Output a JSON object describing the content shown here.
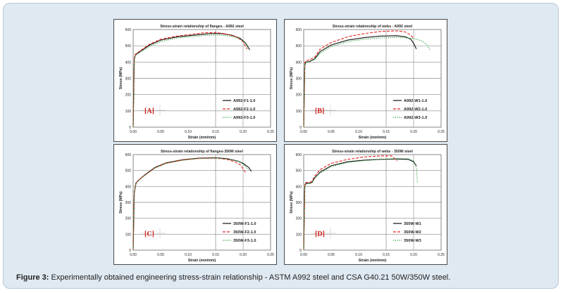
{
  "caption": {
    "label": "Figure 3:",
    "text": " Experimentally obtained engineering stress-strain relationship - ASTM A992 steel and CSA G40.21 50W/350W steel."
  },
  "chart_data": [
    {
      "type": "line",
      "panel_tag": "[A]",
      "title": "Stress-strain relationship of flanges - A992 steel",
      "xlabel": "Strain (mm/mm)",
      "ylabel": "Stress (MPa)",
      "xlim": [
        0,
        0.25
      ],
      "ylim": [
        0,
        600
      ],
      "xticks": [
        "0.00",
        "0.05",
        "0.10",
        "0.15",
        "0.20",
        "0.25"
      ],
      "yticks": [
        "0",
        "100",
        "200",
        "300",
        "400",
        "500",
        "600"
      ],
      "grid": true,
      "legend_position": "bottom-right",
      "series": [
        {
          "name": "A992-F1-1.0",
          "color": "#111111",
          "dash": "solid",
          "x": [
            0,
            0.002,
            0.004,
            0.008,
            0.015,
            0.03,
            0.05,
            0.08,
            0.11,
            0.14,
            0.16,
            0.18,
            0.195,
            0.205,
            0.212
          ],
          "y": [
            0,
            420,
            445,
            455,
            470,
            505,
            535,
            555,
            565,
            575,
            575,
            565,
            545,
            515,
            475
          ]
        },
        {
          "name": "A992-F2-1.0",
          "color": "#e8231f",
          "dash": "dashed",
          "x": [
            0,
            0.002,
            0.004,
            0.008,
            0.015,
            0.03,
            0.05,
            0.08,
            0.11,
            0.13,
            0.15,
            0.17,
            0.19,
            0.2,
            0.207
          ],
          "y": [
            0,
            425,
            448,
            458,
            475,
            510,
            540,
            560,
            572,
            580,
            582,
            572,
            552,
            525,
            480
          ]
        },
        {
          "name": "A992-F3-1.0",
          "color": "#2e9e3a",
          "dash": "dotted",
          "x": [
            0,
            0.002,
            0.004,
            0.008,
            0.015,
            0.03,
            0.05,
            0.08,
            0.11,
            0.14,
            0.16,
            0.18,
            0.195,
            0.205,
            0.21
          ],
          "y": [
            0,
            410,
            438,
            450,
            465,
            495,
            525,
            548,
            558,
            565,
            566,
            558,
            540,
            512,
            480
          ]
        }
      ]
    },
    {
      "type": "line",
      "panel_tag": "[B]",
      "title": "Stress-strain relationship of webs - A992 steel",
      "xlabel": "Strain (mm/mm)",
      "ylabel": "Stress (MPa)",
      "xlim": [
        0,
        0.25
      ],
      "ylim": [
        0,
        600
      ],
      "xticks": [
        "0.00",
        "0.05",
        "0.10",
        "0.15",
        "0.20",
        "0.25"
      ],
      "yticks": [
        "0",
        "100",
        "200",
        "300",
        "400",
        "500",
        "600"
      ],
      "grid": true,
      "legend_position": "bottom-right",
      "series": [
        {
          "name": "A992-W1-1.0",
          "color": "#111111",
          "dash": "solid",
          "x": [
            0,
            0.002,
            0.004,
            0.01,
            0.02,
            0.03,
            0.05,
            0.08,
            0.11,
            0.14,
            0.17,
            0.185,
            0.195,
            0.2,
            0.205
          ],
          "y": [
            0,
            380,
            400,
            402,
            420,
            465,
            505,
            535,
            550,
            560,
            562,
            555,
            540,
            515,
            480
          ]
        },
        {
          "name": "A992-W2-1.0",
          "color": "#e8231f",
          "dash": "dashed",
          "x": [
            0,
            0.002,
            0.004,
            0.01,
            0.02,
            0.03,
            0.05,
            0.08,
            0.11,
            0.14,
            0.17,
            0.185,
            0.195,
            0.2
          ],
          "y": [
            0,
            395,
            410,
            412,
            430,
            480,
            520,
            555,
            575,
            588,
            592,
            585,
            565,
            545
          ]
        },
        {
          "name": "A992-W3-1.0",
          "color": "#2e9e3a",
          "dash": "dotted",
          "x": [
            0,
            0.002,
            0.004,
            0.01,
            0.02,
            0.03,
            0.05,
            0.08,
            0.11,
            0.14,
            0.17,
            0.2,
            0.215,
            0.225,
            0.23
          ],
          "y": [
            0,
            385,
            400,
            405,
            415,
            455,
            495,
            525,
            540,
            548,
            552,
            545,
            530,
            505,
            470
          ]
        }
      ]
    },
    {
      "type": "line",
      "panel_tag": "[C]",
      "title": "Stress-strain relationship of flanges-350W steel",
      "xlabel": "Strain (mm/mm)",
      "ylabel": "Stress (MPa)",
      "xlim": [
        0,
        0.25
      ],
      "ylim": [
        0,
        600
      ],
      "xticks": [
        "0.00",
        "0.05",
        "0.10",
        "0.15",
        "0.20",
        "0.25"
      ],
      "yticks": [
        "0",
        "100",
        "200",
        "300",
        "400",
        "500",
        "600"
      ],
      "grid": true,
      "legend_position": "bottom-right",
      "series": [
        {
          "name": "350W-F1-1.0",
          "color": "#111111",
          "dash": "solid",
          "x": [
            0,
            0.002,
            0.005,
            0.01,
            0.02,
            0.04,
            0.06,
            0.09,
            0.12,
            0.15,
            0.17,
            0.19,
            0.2,
            0.21,
            0.215
          ],
          "y": [
            0,
            360,
            420,
            440,
            470,
            520,
            548,
            568,
            578,
            580,
            575,
            560,
            545,
            520,
            495
          ]
        },
        {
          "name": "350W-F2-1.0",
          "color": "#e8231f",
          "dash": "dashed",
          "x": [
            0,
            0.002,
            0.005,
            0.01,
            0.02,
            0.04,
            0.06,
            0.09,
            0.12,
            0.15,
            0.17,
            0.185,
            0.195,
            0.2,
            0.205
          ],
          "y": [
            0,
            360,
            420,
            440,
            468,
            518,
            546,
            566,
            576,
            578,
            570,
            555,
            535,
            510,
            485
          ]
        },
        {
          "name": "350W-F3-1.0",
          "color": "#2e9e3a",
          "dash": "dotted",
          "x": [
            0,
            0.002,
            0.005,
            0.01,
            0.02,
            0.04,
            0.06,
            0.09,
            0.12,
            0.15,
            0.17,
            0.19,
            0.2,
            0.21
          ],
          "y": [
            0,
            355,
            415,
            438,
            466,
            515,
            544,
            564,
            575,
            578,
            574,
            560,
            540,
            505
          ]
        }
      ]
    },
    {
      "type": "line",
      "panel_tag": "[D]",
      "title": "Stress-strain relationship of webs - 350W steel",
      "xlabel": "Strain (mm/mm)",
      "ylabel": "Stress (MPa)",
      "xlim": [
        0,
        0.25
      ],
      "ylim": [
        0,
        600
      ],
      "xticks": [
        "0.00",
        "0.05",
        "0.10",
        "0.15",
        "0.20",
        "0.25"
      ],
      "yticks": [
        "0",
        "100",
        "200",
        "300",
        "400",
        "500",
        "600"
      ],
      "grid": true,
      "legend_position": "bottom-right",
      "series": [
        {
          "name": "350W-W1",
          "color": "#111111",
          "dash": "solid",
          "x": [
            0,
            0.002,
            0.004,
            0.01,
            0.015,
            0.02,
            0.03,
            0.05,
            0.08,
            0.11,
            0.14,
            0.17,
            0.19,
            0.2,
            0.205
          ],
          "y": [
            0,
            405,
            420,
            420,
            425,
            455,
            490,
            530,
            555,
            565,
            570,
            572,
            570,
            555,
            530
          ]
        },
        {
          "name": "350W-W2",
          "color": "#e8231f",
          "dash": "dashed",
          "x": [
            0,
            0.002,
            0.004,
            0.01,
            0.015,
            0.02,
            0.03,
            0.05,
            0.08,
            0.11,
            0.14,
            0.16,
            0.17
          ],
          "y": [
            0,
            410,
            425,
            425,
            432,
            465,
            505,
            545,
            570,
            585,
            592,
            592,
            560
          ]
        },
        {
          "name": "350W-W3",
          "color": "#2e9e3a",
          "dash": "dotted",
          "x": [
            0,
            0.002,
            0.004,
            0.01,
            0.015,
            0.02,
            0.03,
            0.05,
            0.08,
            0.11,
            0.14,
            0.17,
            0.19,
            0.2,
            0.205,
            0.207
          ],
          "y": [
            0,
            400,
            415,
            418,
            422,
            450,
            485,
            525,
            550,
            562,
            570,
            575,
            575,
            560,
            520,
            420
          ]
        }
      ]
    }
  ]
}
